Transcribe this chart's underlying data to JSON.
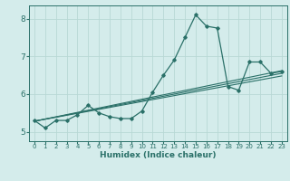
{
  "xlabel": "Humidex (Indice chaleur)",
  "xlim": [
    -0.5,
    23.5
  ],
  "ylim": [
    4.75,
    8.35
  ],
  "yticks": [
    5,
    6,
    7,
    8
  ],
  "xticks": [
    0,
    1,
    2,
    3,
    4,
    5,
    6,
    7,
    8,
    9,
    10,
    11,
    12,
    13,
    14,
    15,
    16,
    17,
    18,
    19,
    20,
    21,
    22,
    23
  ],
  "bg_color": "#d4eceb",
  "grid_color": "#b8d8d5",
  "line_color": "#2a7068",
  "main_line": {
    "x": [
      0,
      1,
      2,
      3,
      4,
      5,
      6,
      7,
      8,
      9,
      10,
      11,
      12,
      13,
      14,
      15,
      16,
      17,
      18,
      19,
      20,
      21,
      22,
      23
    ],
    "y": [
      5.3,
      5.1,
      5.3,
      5.3,
      5.45,
      5.7,
      5.5,
      5.4,
      5.35,
      5.35,
      5.55,
      6.05,
      6.5,
      6.9,
      7.5,
      8.1,
      7.8,
      7.75,
      6.2,
      6.1,
      6.85,
      6.85,
      6.55,
      6.6
    ]
  },
  "trend_lines": [
    {
      "x": [
        0,
        23
      ],
      "y": [
        5.28,
        6.48
      ]
    },
    {
      "x": [
        0,
        23
      ],
      "y": [
        5.28,
        6.55
      ]
    },
    {
      "x": [
        0,
        23
      ],
      "y": [
        5.28,
        6.62
      ]
    }
  ]
}
